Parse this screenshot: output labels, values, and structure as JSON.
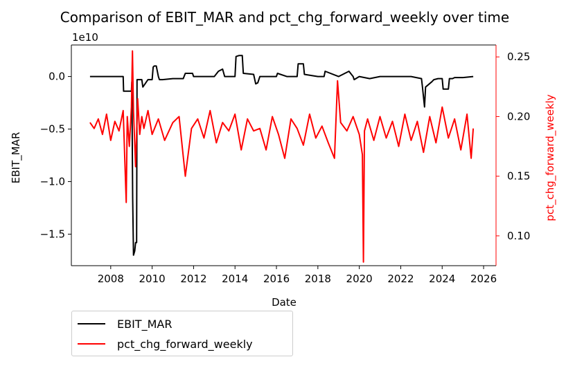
{
  "chart_data": {
    "type": "line",
    "title": "Comparison of EBIT_MAR and pct_chg_forward_weekly over time",
    "xlabel": "Date",
    "ylabel_left": "EBIT_MAR",
    "ylabel_right": "pct_chg_forward_weekly",
    "left_axis_offset_label": "1e10",
    "xlim": [
      2006.1,
      2026.6
    ],
    "ylim_left": [
      -1.8,
      0.3
    ],
    "ylim_right": [
      0.075,
      0.26
    ],
    "x_ticks": [
      2008,
      2010,
      2012,
      2014,
      2016,
      2018,
      2020,
      2022,
      2024,
      2026
    ],
    "x_tick_labels": [
      "2008",
      "2010",
      "2012",
      "2014",
      "2016",
      "2018",
      "2020",
      "2022",
      "2024",
      "2026"
    ],
    "y_left_ticks": [
      0.0,
      -0.5,
      -1.0,
      -1.5
    ],
    "y_left_tick_labels": [
      "0.0",
      "−0.5",
      "−1.0",
      "−1.5"
    ],
    "y_right_ticks": [
      0.25,
      0.2,
      0.15,
      0.1
    ],
    "y_right_tick_labels": [
      "0.25",
      "0.20",
      "0.15",
      "0.10"
    ],
    "legend_position": "below-left",
    "series": [
      {
        "name": "EBIT_MAR",
        "axis": "left",
        "color": "#000000",
        "x": [
          2007.0,
          2008.6,
          2008.62,
          2009.0,
          2009.02,
          2009.06,
          2009.1,
          2009.16,
          2009.2,
          2009.25,
          2009.27,
          2009.5,
          2009.55,
          2009.8,
          2010.0,
          2010.05,
          2010.1,
          2010.2,
          2010.3,
          2010.35,
          2010.5,
          2011.0,
          2011.5,
          2011.6,
          2011.95,
          2012.0,
          2012.2,
          2012.3,
          2013.0,
          2013.2,
          2013.4,
          2013.5,
          2014.0,
          2014.05,
          2014.2,
          2014.35,
          2014.4,
          2014.9,
          2015.0,
          2015.1,
          2015.2,
          2015.3,
          2016.0,
          2016.05,
          2016.5,
          2017.0,
          2017.05,
          2017.3,
          2017.35,
          2018.0,
          2018.3,
          2018.35,
          2019.0,
          2019.5,
          2019.7,
          2019.75,
          2020.0,
          2020.5,
          2021.0,
          2021.5,
          2022.0,
          2022.5,
          2023.0,
          2023.05,
          2023.15,
          2023.2,
          2023.5,
          2023.6,
          2023.8,
          2024.0,
          2024.05,
          2024.3,
          2024.35,
          2024.5,
          2024.6,
          2025.0,
          2025.5
        ],
        "values": [
          0.0,
          0.0,
          -0.14,
          -0.14,
          -0.05,
          -1.15,
          -1.7,
          -1.66,
          -1.58,
          -1.58,
          -0.03,
          -0.03,
          -0.1,
          -0.03,
          -0.03,
          0.09,
          0.1,
          0.1,
          0.0,
          -0.03,
          -0.03,
          -0.02,
          -0.02,
          0.03,
          0.03,
          0.0,
          0.0,
          0.0,
          0.0,
          0.05,
          0.07,
          0.0,
          0.0,
          0.19,
          0.2,
          0.2,
          0.03,
          0.02,
          -0.07,
          -0.06,
          0.0,
          0.0,
          0.0,
          0.03,
          0.0,
          0.0,
          0.12,
          0.12,
          0.02,
          0.0,
          0.0,
          0.05,
          0.0,
          0.05,
          0.0,
          -0.03,
          0.0,
          -0.02,
          0.0,
          0.0,
          0.0,
          0.0,
          -0.02,
          -0.1,
          -0.29,
          -0.1,
          -0.05,
          -0.03,
          -0.02,
          -0.02,
          -0.12,
          -0.12,
          -0.02,
          -0.02,
          -0.01,
          -0.01,
          0.0
        ]
      },
      {
        "name": "pct_chg_forward_weekly",
        "axis": "right",
        "color": "#ff0000",
        "x": [
          2007.0,
          2007.2,
          2007.4,
          2007.6,
          2007.8,
          2008.0,
          2008.2,
          2008.4,
          2008.6,
          2008.75,
          2008.8,
          2008.9,
          2009.0,
          2009.05,
          2009.1,
          2009.2,
          2009.3,
          2009.4,
          2009.5,
          2009.6,
          2009.8,
          2010.0,
          2010.3,
          2010.6,
          2011.0,
          2011.3,
          2011.6,
          2011.9,
          2012.2,
          2012.5,
          2012.8,
          2013.1,
          2013.4,
          2013.7,
          2014.0,
          2014.3,
          2014.6,
          2014.9,
          2015.2,
          2015.5,
          2015.8,
          2016.1,
          2016.4,
          2016.7,
          2017.0,
          2017.3,
          2017.6,
          2017.9,
          2018.2,
          2018.5,
          2018.8,
          2018.95,
          2019.1,
          2019.4,
          2019.7,
          2020.0,
          2020.15,
          2020.2,
          2020.25,
          2020.4,
          2020.7,
          2021.0,
          2021.3,
          2021.6,
          2021.9,
          2022.2,
          2022.5,
          2022.8,
          2023.1,
          2023.4,
          2023.7,
          2024.0,
          2024.3,
          2024.6,
          2024.9,
          2025.2,
          2025.4,
          2025.5
        ],
        "values": [
          0.195,
          0.19,
          0.198,
          0.185,
          0.202,
          0.18,
          0.196,
          0.188,
          0.205,
          0.128,
          0.2,
          0.175,
          0.208,
          0.255,
          0.205,
          0.158,
          0.215,
          0.185,
          0.2,
          0.19,
          0.205,
          0.185,
          0.198,
          0.18,
          0.195,
          0.2,
          0.15,
          0.19,
          0.198,
          0.182,
          0.205,
          0.178,
          0.195,
          0.188,
          0.202,
          0.172,
          0.198,
          0.188,
          0.19,
          0.172,
          0.2,
          0.185,
          0.165,
          0.198,
          0.19,
          0.176,
          0.202,
          0.182,
          0.192,
          0.178,
          0.165,
          0.23,
          0.195,
          0.188,
          0.2,
          0.185,
          0.168,
          0.078,
          0.188,
          0.198,
          0.18,
          0.2,
          0.182,
          0.196,
          0.175,
          0.202,
          0.18,
          0.196,
          0.17,
          0.2,
          0.178,
          0.208,
          0.182,
          0.198,
          0.172,
          0.202,
          0.165,
          0.19
        ]
      }
    ]
  }
}
